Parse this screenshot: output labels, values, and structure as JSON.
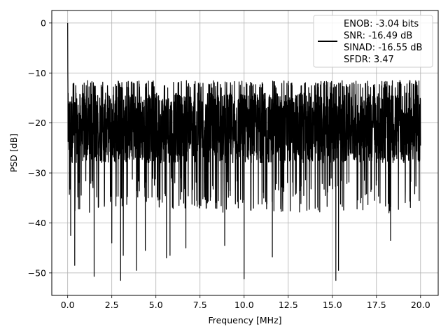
{
  "chart_data": {
    "type": "line",
    "xlabel": "Frequency [MHz]",
    "ylabel": "PSD [dB]",
    "xlim": [
      -0.9,
      21.0
    ],
    "ylim": [
      -54.5,
      2.5
    ],
    "xticks": [
      0.0,
      2.5,
      5.0,
      7.5,
      10.0,
      12.5,
      15.0,
      17.5,
      20.0
    ],
    "xtick_labels": [
      "0.0",
      "2.5",
      "5.0",
      "7.5",
      "10.0",
      "12.5",
      "15.0",
      "17.5",
      "20.0"
    ],
    "yticks": [
      0,
      -10,
      -20,
      -30,
      -40,
      -50
    ],
    "ytick_labels": [
      "0",
      "−10",
      "−20",
      "−30",
      "−40",
      "−50"
    ],
    "grid": true,
    "legend_position": "top-right",
    "legend_lines": [
      "ENOB: -3.04 bits",
      "SNR: -16.49 dB",
      "SINAD: -16.55 dB",
      "SFDR: 3.47"
    ],
    "series": [
      {
        "color": "#000000",
        "peak": {
          "x": 0.0,
          "y": 0.0
        },
        "noise_floor_range_db": [
          -30,
          -13
        ],
        "x_range": [
          0.0,
          20.0
        ],
        "notable_minima": [
          {
            "x": 0.17,
            "y": -42.5
          },
          {
            "x": 0.4,
            "y": -48.5
          },
          {
            "x": 1.5,
            "y": -50.7
          },
          {
            "x": 2.5,
            "y": -44.0
          },
          {
            "x": 3.0,
            "y": -51.5
          },
          {
            "x": 3.15,
            "y": -46.5
          },
          {
            "x": 3.9,
            "y": -49.5
          },
          {
            "x": 4.4,
            "y": -45.5
          },
          {
            "x": 5.6,
            "y": -47.0
          },
          {
            "x": 5.8,
            "y": -46.5
          },
          {
            "x": 6.7,
            "y": -45.0
          },
          {
            "x": 8.9,
            "y": -44.5
          },
          {
            "x": 10.0,
            "y": -51.2
          },
          {
            "x": 11.6,
            "y": -46.8
          },
          {
            "x": 15.2,
            "y": -51.5
          },
          {
            "x": 15.35,
            "y": -49.5
          },
          {
            "x": 18.3,
            "y": -43.5
          }
        ]
      }
    ]
  }
}
